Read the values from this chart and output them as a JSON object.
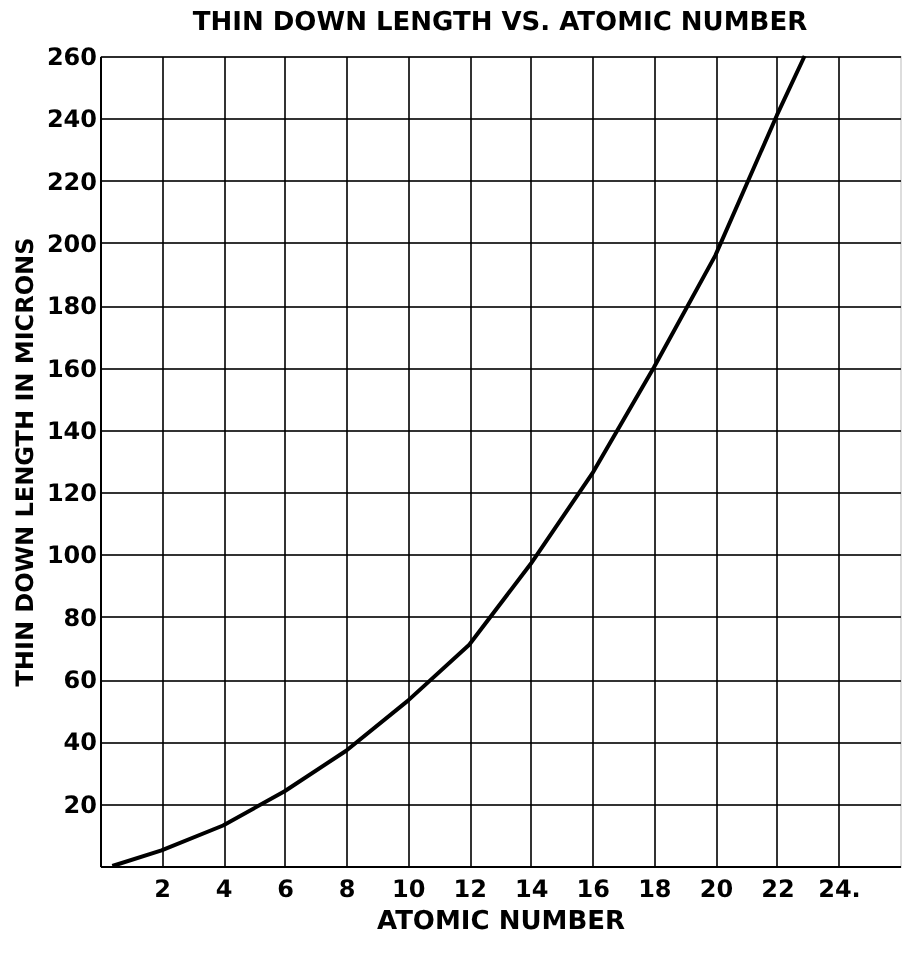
{
  "chart_data": {
    "type": "line",
    "title": "THIN DOWN LENGTH VS. ATOMIC NUMBER",
    "xlabel": "ATOMIC NUMBER",
    "ylabel": "THIN DOWN LENGTH IN MICRONS",
    "x": [
      0.4,
      2,
      4,
      6,
      8,
      10,
      12,
      14,
      16,
      18,
      20,
      22,
      22.9
    ],
    "series": [
      {
        "color": "#000000",
        "values": [
          0,
          5,
          13,
          24,
          37,
          53,
          71,
          97,
          126,
          160,
          196,
          241,
          260
        ]
      }
    ],
    "xlim": [
      0,
      26
    ],
    "xticks": [
      2,
      4,
      6,
      8,
      10,
      12,
      14,
      16,
      18,
      20,
      22,
      {
        "value": 24,
        "label": "24."
      }
    ],
    "ylim": [
      0,
      260
    ],
    "yticks": [
      {
        "value": 0,
        "label": null
      },
      20,
      40,
      60,
      80,
      100,
      120,
      140,
      160,
      180,
      200,
      220,
      240,
      260
    ],
    "grid": true,
    "marker": "none",
    "line_style": "solid"
  }
}
